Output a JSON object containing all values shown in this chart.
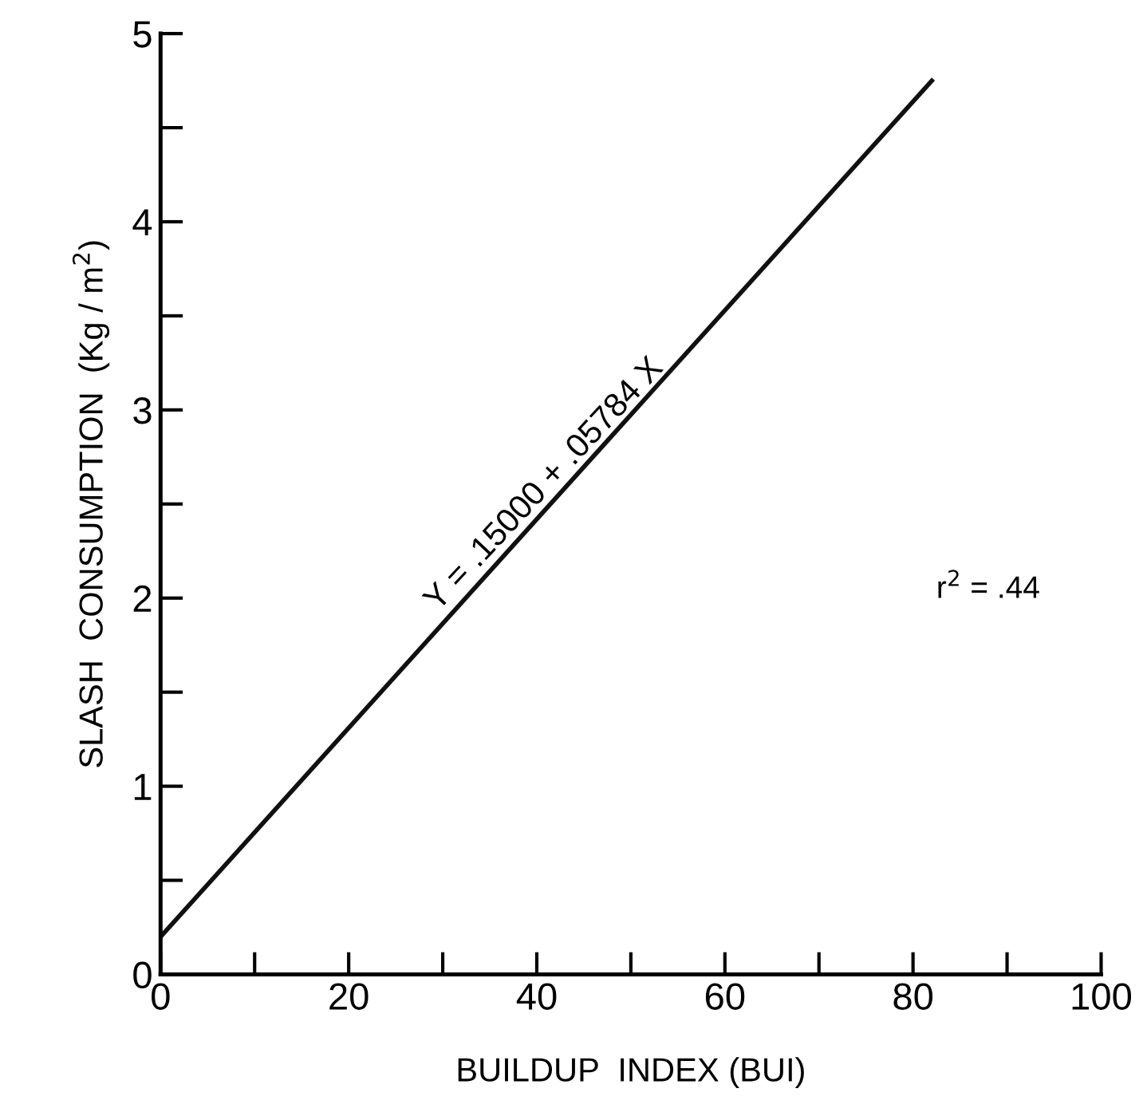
{
  "chart_data": {
    "type": "line",
    "xlabel": "BUILDUP  INDEX (BUI)",
    "ylabel": "SLASH  CONSUMPTION  (Kg / m$^{2}$)",
    "series": [
      {
        "x": [
          0,
          82
        ],
        "values": [
          0.2,
          4.75
        ],
        "color": "#111111"
      }
    ],
    "xlim": [
      0,
      100
    ],
    "ylim": [
      0,
      5
    ],
    "xticks": [
      0,
      {
        "value": 10,
        "label": null
      },
      20,
      {
        "value": 30,
        "label": null
      },
      40,
      {
        "value": 50,
        "label": null
      },
      60,
      {
        "value": 70,
        "label": null
      },
      80,
      {
        "value": 90,
        "label": null
      },
      100
    ],
    "yticks": [
      0,
      {
        "value": 0.5,
        "label": null
      },
      1,
      {
        "value": 1.5,
        "label": null
      },
      2,
      {
        "value": 2.5,
        "label": null
      },
      3,
      {
        "value": 3.5,
        "label": null
      },
      4,
      {
        "value": 4.5,
        "label": null
      },
      5
    ],
    "annotations": [
      {
        "text": "Y = .15000 + .05784 X",
        "x": 30,
        "y": 1.9
      },
      "r$^{2}$ = .44"
    ],
    "grid": false,
    "legend": false,
    "marker": "none",
    "line_style": "solid"
  }
}
